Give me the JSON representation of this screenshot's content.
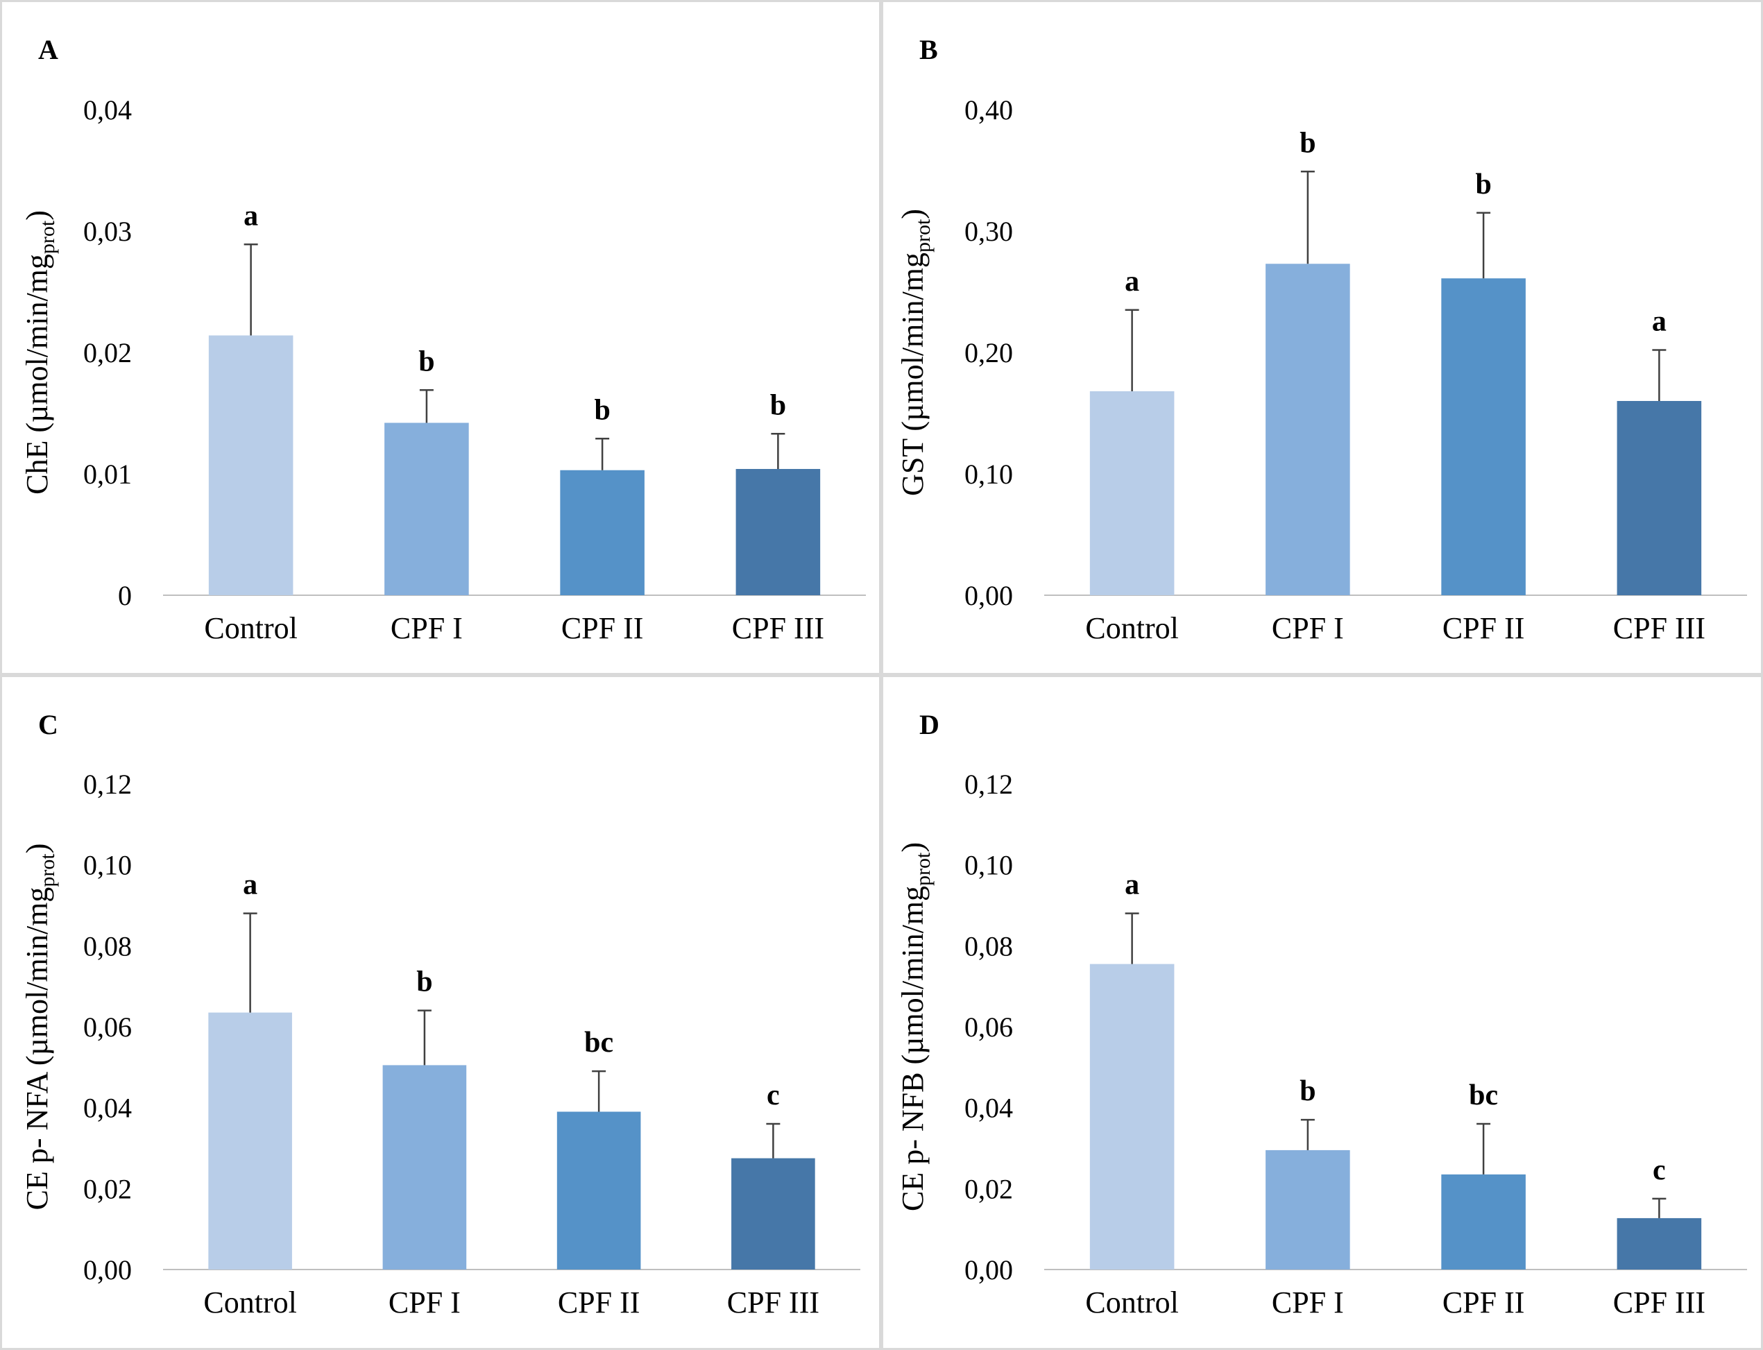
{
  "colors": {
    "control": "#b8cde8",
    "cpf1": "#86afdc",
    "cpf2": "#5592c8",
    "cpf3": "#4677a8",
    "axis": "#bfbfbf",
    "error_bar": "#404040",
    "border": "#d9d9d9"
  },
  "chart_data": [
    {
      "panel": "A",
      "type": "bar",
      "categories": [
        "Control",
        "CPF I",
        "CPF II",
        "CPF III"
      ],
      "values": [
        0.0214,
        0.0142,
        0.0103,
        0.0104
      ],
      "errors": [
        0.0075,
        0.0027,
        0.0026,
        0.0029
      ],
      "significance": [
        "a",
        "b",
        "b",
        "b"
      ],
      "ylabel_main": "ChE (µmol/min/mg",
      "ylabel_sub": "prot",
      "ylabel_close": ")",
      "ylim": [
        0,
        0.04
      ],
      "yticks": [
        0,
        0.01,
        0.02,
        0.03,
        0.04
      ],
      "ytick_labels": [
        "0",
        "0,01",
        "0,02",
        "0,03",
        "0,04"
      ]
    },
    {
      "panel": "B",
      "type": "bar",
      "categories": [
        "Control",
        "CPF I",
        "CPF II",
        "CPF III"
      ],
      "values": [
        0.168,
        0.273,
        0.261,
        0.16
      ],
      "errors": [
        0.067,
        0.076,
        0.054,
        0.042
      ],
      "significance": [
        "a",
        "b",
        "b",
        "a"
      ],
      "ylabel_main": "GST  (µmol/min/mg",
      "ylabel_sub": "prot",
      "ylabel_close": ")",
      "ylim": [
        0,
        0.4
      ],
      "yticks": [
        0,
        0.1,
        0.2,
        0.3,
        0.4
      ],
      "ytick_labels": [
        "0,00",
        "0,10",
        "0,20",
        "0,30",
        "0,40"
      ]
    },
    {
      "panel": "C",
      "type": "bar",
      "categories": [
        "Control",
        "CPF I",
        "CPF II",
        "CPF III"
      ],
      "values": [
        0.0635,
        0.0505,
        0.039,
        0.0275
      ],
      "errors": [
        0.0245,
        0.0135,
        0.01,
        0.0085
      ],
      "significance": [
        "a",
        "b",
        "bc",
        "c"
      ],
      "ylabel_main": "CE p- NFA (µmol/min/mg",
      "ylabel_sub": "prot",
      "ylabel_close": ")",
      "ylim": [
        0,
        0.12
      ],
      "yticks": [
        0,
        0.02,
        0.04,
        0.06,
        0.08,
        0.1,
        0.12
      ],
      "ytick_labels": [
        "0,00",
        "0,02",
        "0,04",
        "0,06",
        "0,08",
        "0,10",
        "0,12"
      ]
    },
    {
      "panel": "D",
      "type": "bar",
      "categories": [
        "Control",
        "CPF I",
        "CPF II",
        "CPF III"
      ],
      "values": [
        0.0755,
        0.0295,
        0.0235,
        0.0127
      ],
      "errors": [
        0.0125,
        0.0075,
        0.0125,
        0.0048
      ],
      "significance": [
        "a",
        "b",
        "bc",
        "c"
      ],
      "ylabel_main": "CE p- NFB (µmol/min/mg",
      "ylabel_sub": "prot",
      "ylabel_close": ")",
      "ylim": [
        0,
        0.12
      ],
      "yticks": [
        0,
        0.02,
        0.04,
        0.06,
        0.08,
        0.1,
        0.12
      ],
      "ytick_labels": [
        "0,00",
        "0,02",
        "0,04",
        "0,06",
        "0,08",
        "0,10",
        "0,12"
      ]
    }
  ]
}
